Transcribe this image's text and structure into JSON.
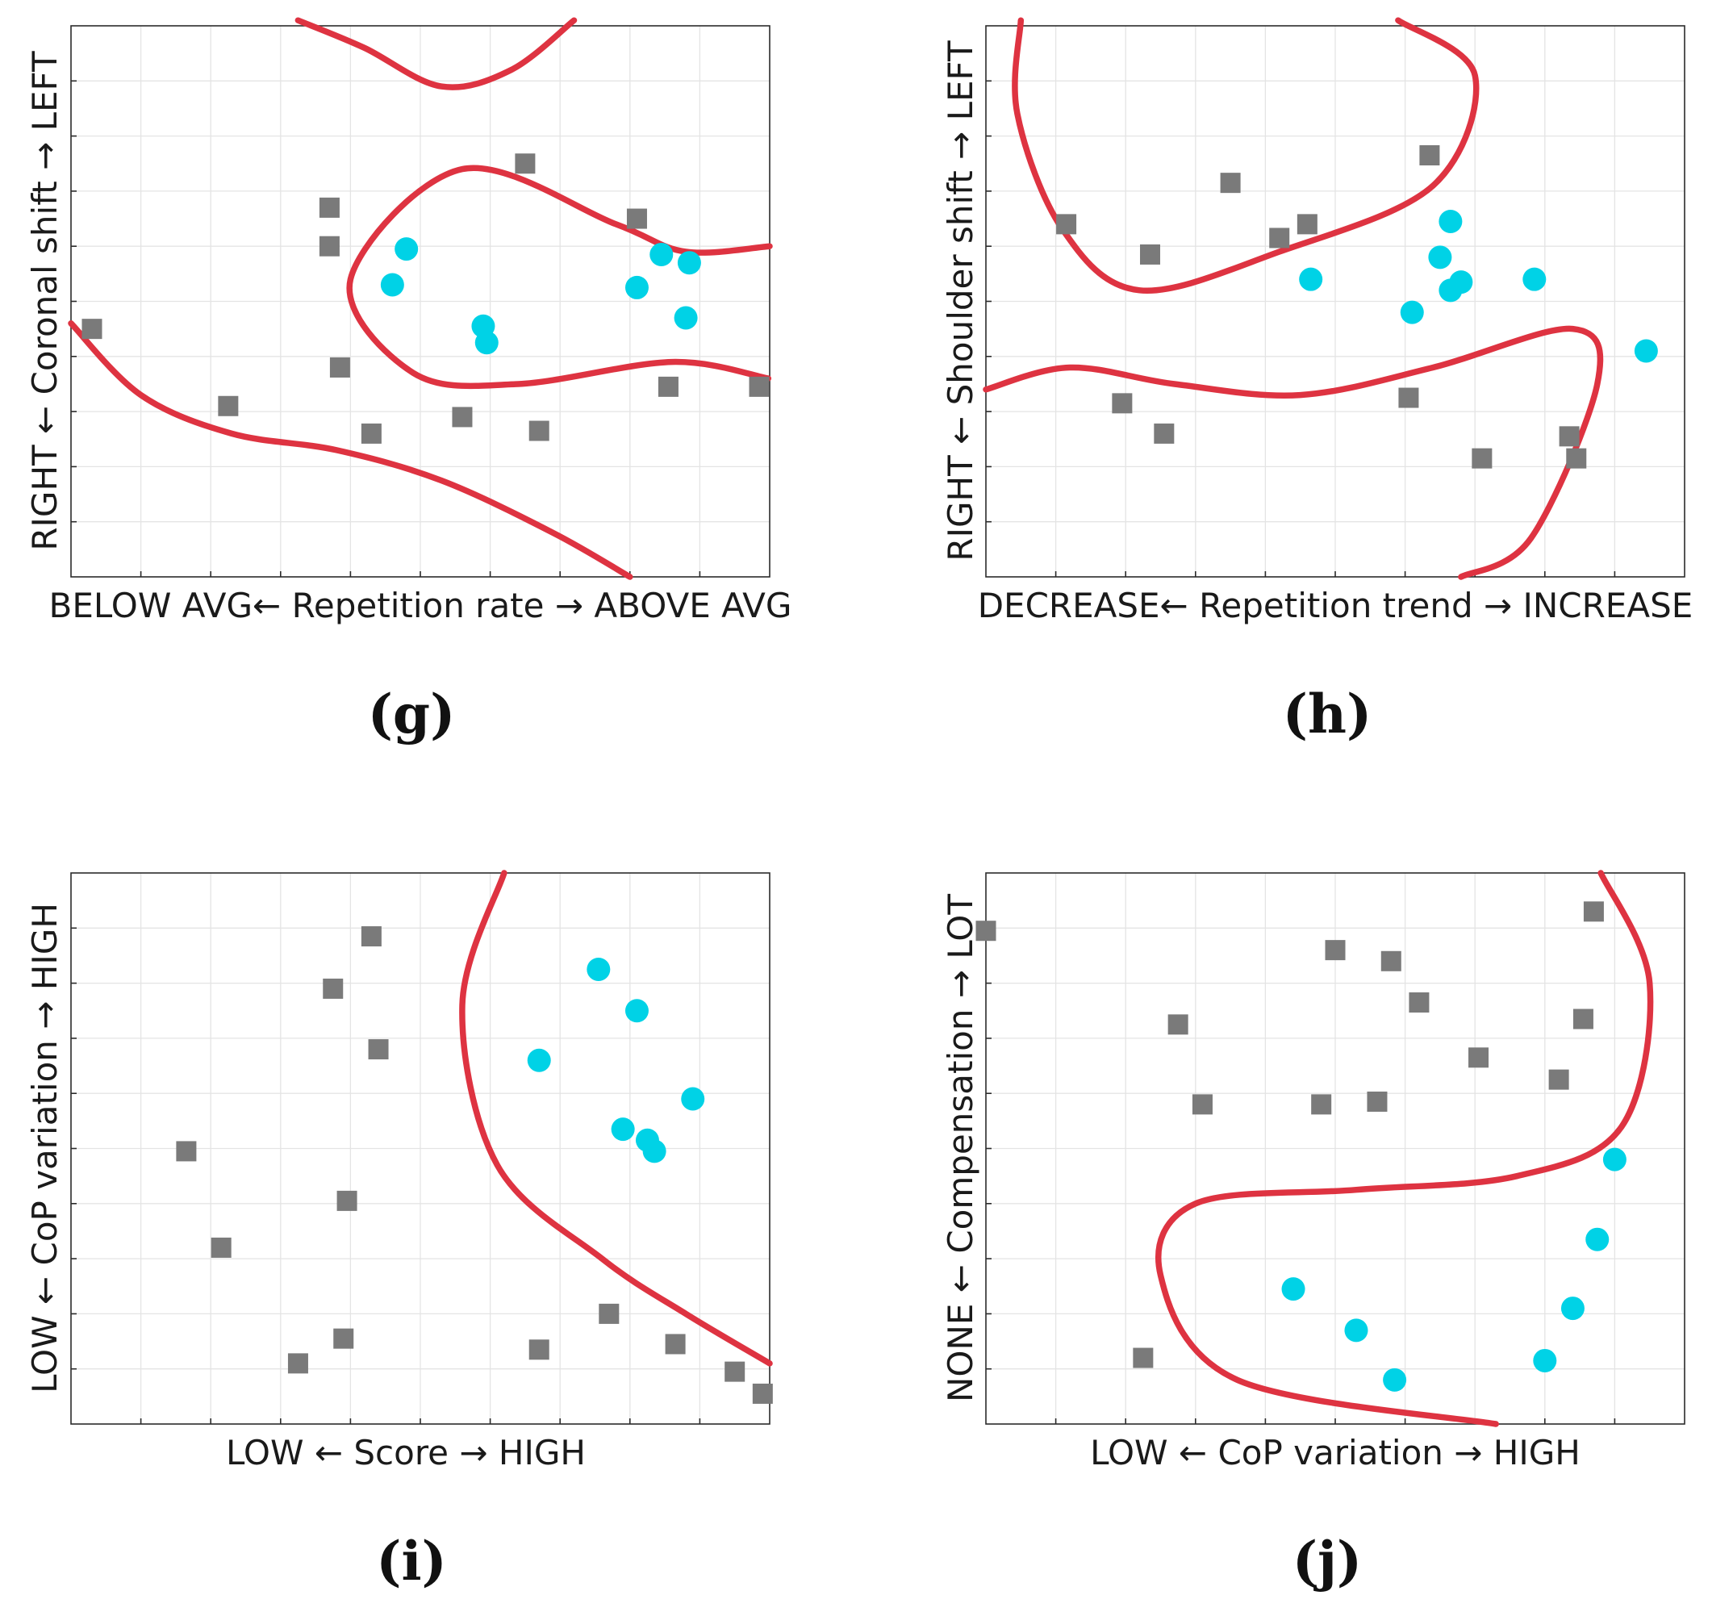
{
  "colors": {
    "square": "#7a7a7a",
    "circle": "#00d2e6",
    "boundary": "#de3341"
  },
  "chart_data": [
    {
      "type": "scatter",
      "panel": "(g)",
      "xlabel": "BELOW AVG← Repetition rate → ABOVE AVG",
      "ylabel": "RIGHT ← Coronal shift → LEFT",
      "xlim": [
        0,
        10
      ],
      "ylim": [
        0,
        10
      ],
      "grid": true,
      "series": [
        {
          "name": "class-square",
          "marker": "square",
          "points": [
            [
              0.3,
              4.5
            ],
            [
              3.7,
              6.7
            ],
            [
              3.7,
              6.0
            ],
            [
              3.85,
              3.8
            ],
            [
              2.25,
              3.1
            ],
            [
              4.3,
              2.6
            ],
            [
              5.6,
              2.9
            ],
            [
              6.5,
              7.5
            ],
            [
              6.7,
              2.65
            ],
            [
              8.1,
              6.5
            ],
            [
              8.55,
              3.45
            ],
            [
              9.85,
              3.45
            ]
          ]
        },
        {
          "name": "class-circle",
          "marker": "circle",
          "points": [
            [
              4.8,
              5.95
            ],
            [
              4.6,
              5.3
            ],
            [
              5.9,
              4.55
            ],
            [
              5.95,
              4.25
            ],
            [
              8.1,
              5.25
            ],
            [
              8.45,
              5.85
            ],
            [
              8.85,
              5.7
            ],
            [
              8.8,
              4.7
            ]
          ]
        }
      ],
      "boundaries": [
        [
          [
            3.25,
            10.1
          ],
          [
            4.2,
            9.6
          ],
          [
            5.3,
            8.9
          ],
          [
            6.3,
            9.2
          ],
          [
            7.2,
            10.1
          ]
        ],
        [
          [
            0.0,
            4.6
          ],
          [
            1.0,
            3.3
          ],
          [
            2.3,
            2.6
          ],
          [
            3.8,
            2.3
          ],
          [
            5.3,
            1.75
          ],
          [
            6.9,
            0.8
          ],
          [
            8.0,
            0.0
          ]
        ],
        [
          [
            9.98,
            3.6
          ],
          [
            8.6,
            3.9
          ],
          [
            6.4,
            3.5
          ],
          [
            4.9,
            3.7
          ],
          [
            4.0,
            5.4
          ],
          [
            5.6,
            7.4
          ],
          [
            7.8,
            6.4
          ],
          [
            8.8,
            5.9
          ],
          [
            10.0,
            6.0
          ]
        ]
      ]
    },
    {
      "type": "scatter",
      "panel": "(h)",
      "xlabel": "DECREASE← Repetition trend → INCREASE",
      "ylabel": "RIGHT ← Shoulder shift → LEFT",
      "xlim": [
        0,
        10
      ],
      "ylim": [
        0,
        10
      ],
      "grid": true,
      "series": [
        {
          "name": "class-square",
          "marker": "square",
          "points": [
            [
              1.15,
              6.4
            ],
            [
              2.35,
              5.85
            ],
            [
              3.5,
              7.15
            ],
            [
              4.2,
              6.15
            ],
            [
              4.6,
              6.4
            ],
            [
              6.35,
              7.65
            ],
            [
              1.95,
              3.15
            ],
            [
              2.55,
              2.6
            ],
            [
              6.05,
              3.25
            ],
            [
              7.1,
              2.15
            ],
            [
              8.35,
              2.55
            ],
            [
              8.45,
              2.15
            ]
          ]
        },
        {
          "name": "class-circle",
          "marker": "circle",
          "points": [
            [
              6.65,
              6.45
            ],
            [
              6.5,
              5.8
            ],
            [
              6.65,
              5.2
            ],
            [
              6.8,
              5.35
            ],
            [
              4.65,
              5.4
            ],
            [
              6.1,
              4.8
            ],
            [
              7.85,
              5.4
            ],
            [
              9.45,
              4.1
            ]
          ]
        }
      ],
      "boundaries": [
        [
          [
            0.5,
            10.1
          ],
          [
            0.45,
            8.4
          ],
          [
            1.1,
            6.3
          ],
          [
            2.2,
            5.2
          ],
          [
            4.2,
            5.9
          ],
          [
            6.4,
            7.1
          ],
          [
            7.0,
            9.1
          ],
          [
            5.9,
            10.1
          ]
        ],
        [
          [
            0.0,
            3.4
          ],
          [
            1.2,
            3.8
          ],
          [
            2.7,
            3.5
          ],
          [
            4.5,
            3.3
          ],
          [
            6.4,
            3.8
          ],
          [
            8.4,
            4.5
          ],
          [
            8.75,
            3.5
          ],
          [
            7.8,
            0.7
          ],
          [
            6.8,
            0.0
          ]
        ]
      ]
    },
    {
      "type": "scatter",
      "panel": "(i)",
      "xlabel": "LOW ← Score → HIGH",
      "ylabel": "LOW ← CoP variation → HIGH",
      "xlim": [
        0,
        10
      ],
      "ylim": [
        0,
        10
      ],
      "grid": true,
      "series": [
        {
          "name": "class-square",
          "marker": "square",
          "points": [
            [
              4.3,
              8.85
            ],
            [
              3.75,
              7.9
            ],
            [
              4.4,
              6.8
            ],
            [
              1.65,
              4.95
            ],
            [
              3.95,
              4.05
            ],
            [
              2.15,
              3.2
            ],
            [
              3.9,
              1.55
            ],
            [
              3.25,
              1.1
            ],
            [
              6.7,
              1.35
            ],
            [
              7.7,
              2.0
            ],
            [
              8.65,
              1.45
            ],
            [
              9.5,
              0.95
            ],
            [
              9.9,
              0.55
            ]
          ]
        },
        {
          "name": "class-circle",
          "marker": "circle",
          "points": [
            [
              7.55,
              8.25
            ],
            [
              8.1,
              7.5
            ],
            [
              6.7,
              6.6
            ],
            [
              8.9,
              5.9
            ],
            [
              7.9,
              5.35
            ],
            [
              8.25,
              5.15
            ],
            [
              8.35,
              4.95
            ]
          ]
        }
      ],
      "boundaries": [
        [
          [
            6.2,
            10.0
          ],
          [
            5.6,
            7.6
          ],
          [
            6.1,
            4.7
          ],
          [
            7.6,
            3.0
          ],
          [
            8.8,
            2.0
          ],
          [
            10.0,
            1.1
          ]
        ]
      ]
    },
    {
      "type": "scatter",
      "panel": "(j)",
      "xlabel": "LOW ← CoP variation → HIGH",
      "ylabel": "NONE ← Compensation → LOT",
      "xlim": [
        0,
        10
      ],
      "ylim": [
        0,
        10
      ],
      "grid": true,
      "series": [
        {
          "name": "class-square",
          "marker": "square",
          "points": [
            [
              0.0,
              8.95
            ],
            [
              5.0,
              8.6
            ],
            [
              5.8,
              8.4
            ],
            [
              8.7,
              9.3
            ],
            [
              2.75,
              7.25
            ],
            [
              6.2,
              7.65
            ],
            [
              8.55,
              7.35
            ],
            [
              3.1,
              5.8
            ],
            [
              4.8,
              5.8
            ],
            [
              5.6,
              5.85
            ],
            [
              7.05,
              6.65
            ],
            [
              8.2,
              6.25
            ],
            [
              2.25,
              1.2
            ]
          ]
        },
        {
          "name": "class-circle",
          "marker": "circle",
          "points": [
            [
              9.0,
              4.8
            ],
            [
              8.75,
              3.35
            ],
            [
              8.4,
              2.1
            ],
            [
              8.0,
              1.15
            ],
            [
              4.4,
              2.45
            ],
            [
              5.3,
              1.7
            ],
            [
              5.85,
              0.8
            ]
          ]
        }
      ],
      "boundaries": [
        [
          [
            8.8,
            10.0
          ],
          [
            9.5,
            8.0
          ],
          [
            9.1,
            5.4
          ],
          [
            7.6,
            4.5
          ],
          [
            5.3,
            4.25
          ],
          [
            3.0,
            4.0
          ],
          [
            2.5,
            2.7
          ],
          [
            3.6,
            0.8
          ],
          [
            7.3,
            0.0
          ]
        ]
      ]
    }
  ]
}
